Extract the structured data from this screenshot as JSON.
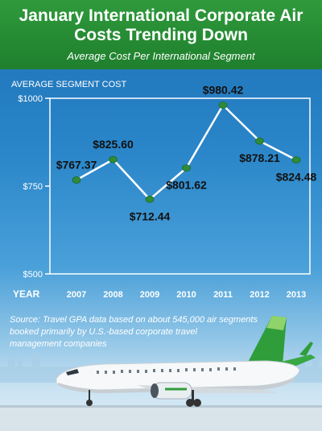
{
  "header": {
    "title_line1": "January International Corporate Air",
    "title_line2": "Costs Trending Down",
    "subtitle": "Average Cost Per International Segment"
  },
  "source_lines": [
    "Source: Travel GPA data based on about 545,000 air segments",
    "booked primarily by U.S.-based corporate travel",
    "management companies"
  ],
  "colors": {
    "header_green": "#2a8f38",
    "line": "#ffffff",
    "marker": "#2e8b3a",
    "text_dark": "#111111"
  },
  "chart_data": {
    "type": "line",
    "title": "January International Corporate Air Costs Trending Down",
    "subtitle": "Average Cost Per International Segment",
    "ylabel": "AVERAGE SEGMENT COST",
    "xlabel": "YEAR",
    "categories": [
      "2007",
      "2008",
      "2009",
      "2010",
      "2011",
      "2012",
      "2013"
    ],
    "values": [
      767.37,
      825.6,
      712.44,
      801.62,
      980.42,
      878.21,
      824.48
    ],
    "data_labels": [
      "$767.37",
      "$825.60",
      "$712.44",
      "$801.62",
      "$980.42",
      "$878.21",
      "$824.48"
    ],
    "ylim": [
      500,
      1000
    ],
    "yticks": [
      500,
      750,
      1000
    ],
    "ytick_labels": [
      "$500",
      "$750",
      "$1000"
    ],
    "grid": false,
    "legend": "none"
  }
}
